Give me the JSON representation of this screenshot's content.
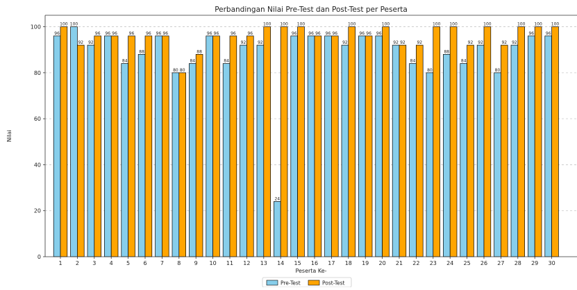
{
  "chart_data": {
    "type": "bar",
    "title": "Perbandingan Nilai Pre-Test dan Post-Test per Peserta",
    "xlabel": "Peserta Ke-",
    "ylabel": "Nilai",
    "ylim": [
      0,
      105
    ],
    "yticks": [
      0,
      20,
      40,
      60,
      80,
      100
    ],
    "grid": "horizontal dashed",
    "legend_position": "bottom-center",
    "categories": [
      "1",
      "2",
      "3",
      "4",
      "5",
      "6",
      "7",
      "8",
      "9",
      "10",
      "11",
      "12",
      "13",
      "14",
      "15",
      "16",
      "17",
      "18",
      "19",
      "20",
      "21",
      "22",
      "23",
      "24",
      "25",
      "26",
      "27",
      "28",
      "29",
      "30"
    ],
    "series": [
      {
        "name": "Pre-Test",
        "color": "#87ceeb",
        "values": [
          96,
          100,
          92,
          96,
          84,
          88,
          96,
          80,
          84,
          96,
          84,
          92,
          92,
          24,
          96,
          96,
          96,
          92,
          96,
          96,
          92,
          84,
          80,
          88,
          84,
          92,
          80,
          92,
          96,
          96
        ]
      },
      {
        "name": "Post-Test",
        "color": "#ffa500",
        "values": [
          100,
          92,
          96,
          96,
          96,
          96,
          96,
          80,
          88,
          96,
          96,
          96,
          100,
          100,
          100,
          96,
          96,
          100,
          96,
          100,
          92,
          92,
          100,
          100,
          92,
          100,
          92,
          100,
          100,
          100
        ]
      }
    ]
  }
}
